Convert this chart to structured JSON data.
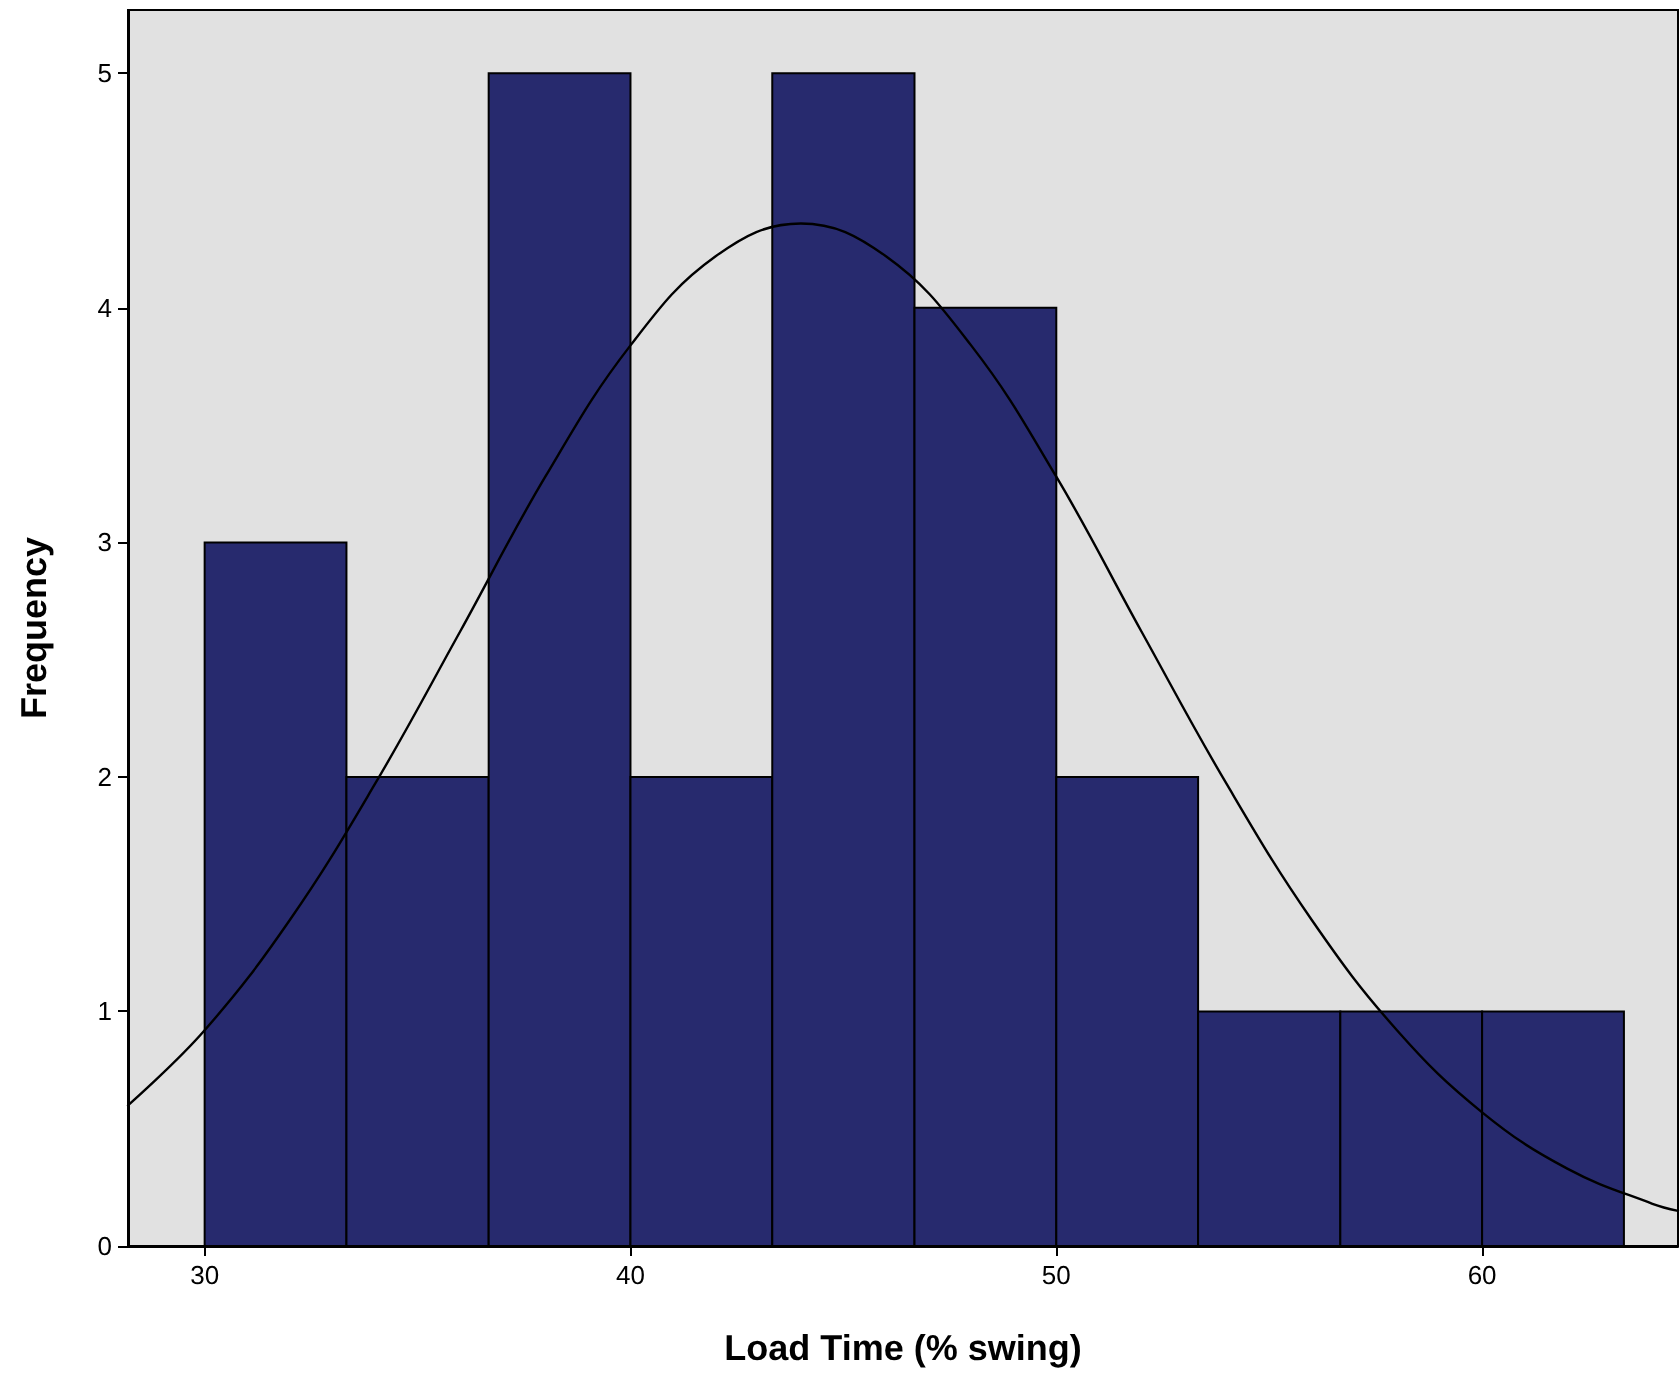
{
  "chart_data": {
    "type": "histogram",
    "xlabel": "Load Time (% swing)",
    "ylabel": "Frequency",
    "bins": [
      30,
      33.33,
      36.67,
      40,
      43.33,
      46.67,
      50,
      53.33,
      56.67,
      60,
      63.33
    ],
    "series": [
      {
        "color": "#272a6e",
        "values": [
          3,
          2,
          5,
          2,
          5,
          4,
          2,
          1,
          1,
          1
        ]
      },
      {
        "type": "line",
        "color": "#000000",
        "x": [
          28.2,
          30,
          32,
          34,
          36,
          38,
          40,
          42,
          44,
          46,
          48,
          50,
          52,
          54,
          56,
          58,
          60,
          62,
          64,
          64.6
        ],
        "values": [
          0.6,
          0.92,
          1.39,
          1.97,
          2.62,
          3.28,
          3.84,
          4.22,
          4.36,
          4.22,
          3.84,
          3.28,
          2.62,
          1.97,
          1.39,
          0.92,
          0.57,
          0.33,
          0.18,
          0.15
        ]
      }
    ],
    "xlim": [
      28.2,
      64.6
    ],
    "ylim": [
      0,
      5.27
    ],
    "xticks": [
      30,
      40,
      50,
      60
    ],
    "yticks": [
      0,
      1,
      2,
      3,
      4,
      5
    ],
    "grid": false,
    "marker": "none",
    "line_style": "solid"
  }
}
